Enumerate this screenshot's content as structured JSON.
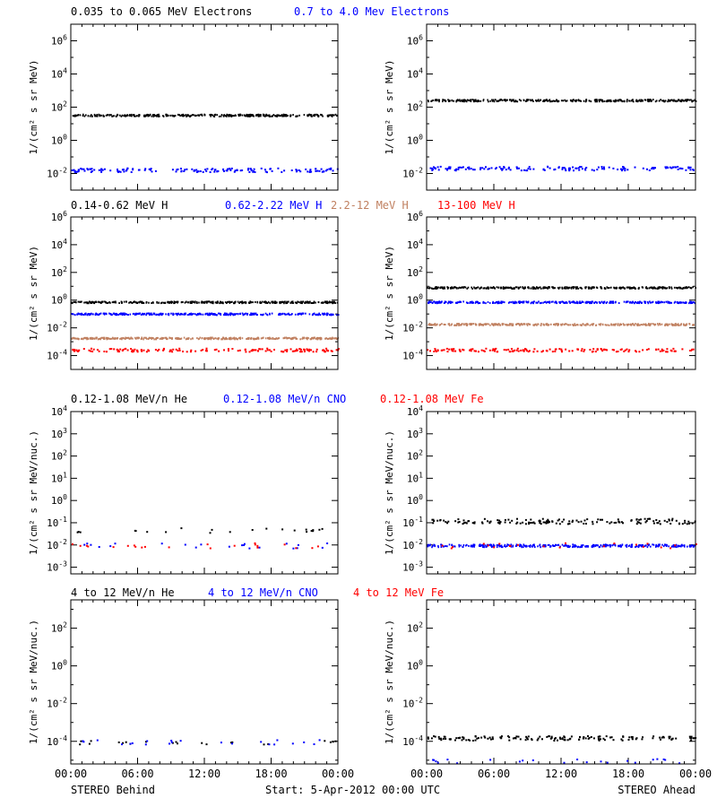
{
  "colors": {
    "black": "#000000",
    "blue": "#0000ff",
    "tan": "#c08060",
    "red": "#ff0000"
  },
  "footer": {
    "behind": "STEREO Behind",
    "ahead": "STEREO Ahead",
    "start": "Start:  5-Apr-2012 00:00 UTC"
  },
  "x_ticks": [
    "00:00",
    "06:00",
    "12:00",
    "18:00",
    "00:00"
  ],
  "chart_data": [
    {
      "type": "scatter",
      "row": 0,
      "spacecraft": "STEREO Behind",
      "ylabel": "1/(cm² s sr MeV)",
      "ylim_log10": [
        -3,
        7
      ],
      "y_ticks_exp": [
        -2,
        0,
        2,
        4,
        6
      ],
      "x": [
        0,
        24
      ],
      "x_unit": "hours",
      "series": [
        {
          "name": "0.035 to 0.065 MeV Electrons",
          "color": "black",
          "level_log10": 1.55,
          "density": "continuous"
        },
        {
          "name": "0.7 to 4.0 Mev Electrons",
          "color": "blue",
          "level_log10": -1.75,
          "density": "scattered"
        }
      ]
    },
    {
      "type": "scatter",
      "row": 0,
      "spacecraft": "STEREO Ahead",
      "ylabel": "1/(cm² s sr MeV)",
      "ylim_log10": [
        -3,
        7
      ],
      "y_ticks_exp": [
        -2,
        0,
        2,
        4,
        6
      ],
      "x": [
        0,
        24
      ],
      "x_unit": "hours",
      "series": [
        {
          "name": "0.035 to 0.065 MeV Electrons",
          "color": "black",
          "level_log10": 2.45,
          "density": "continuous"
        },
        {
          "name": "0.7 to 4.0 Mev Electrons",
          "color": "blue",
          "level_log10": -1.65,
          "density": "scattered"
        }
      ]
    },
    {
      "type": "scatter",
      "row": 1,
      "spacecraft": "STEREO Behind",
      "ylabel": "1/(cm² s sr MeV)",
      "ylim_log10": [
        -5,
        6
      ],
      "y_ticks_exp": [
        -4,
        -2,
        0,
        2,
        4,
        6
      ],
      "x": [
        0,
        24
      ],
      "x_unit": "hours",
      "series": [
        {
          "name": "0.14-0.62 MeV H",
          "color": "black",
          "level_log10": -0.1,
          "density": "continuous"
        },
        {
          "name": "0.62-2.22 MeV H",
          "color": "blue",
          "level_log10": -0.95,
          "density": "continuous"
        },
        {
          "name": "2.2-12 MeV H",
          "color": "tan",
          "level_log10": -2.7,
          "density": "continuous"
        },
        {
          "name": "13-100 MeV H",
          "color": "red",
          "level_log10": -3.55,
          "density": "scattered"
        }
      ]
    },
    {
      "type": "scatter",
      "row": 1,
      "spacecraft": "STEREO Ahead",
      "ylabel": "1/(cm² s sr MeV)",
      "ylim_log10": [
        -5,
        6
      ],
      "y_ticks_exp": [
        -4,
        -2,
        0,
        2,
        4,
        6
      ],
      "x": [
        0,
        24
      ],
      "x_unit": "hours",
      "series": [
        {
          "name": "0.14-0.62 MeV H",
          "color": "black",
          "level_log10": 0.95,
          "density": "continuous"
        },
        {
          "name": "0.62-2.22 MeV H",
          "color": "blue",
          "level_log10": -0.1,
          "density": "continuous"
        },
        {
          "name": "2.2-12 MeV H",
          "color": "tan",
          "level_log10": -1.7,
          "density": "continuous"
        },
        {
          "name": "13-100 MeV H",
          "color": "red",
          "level_log10": -3.55,
          "density": "scattered"
        }
      ]
    },
    {
      "type": "scatter",
      "row": 2,
      "spacecraft": "STEREO Behind",
      "ylabel": "1/(cm² s sr MeV/nuc.)",
      "ylim_log10": [
        -3.3,
        4
      ],
      "y_ticks_exp": [
        -3,
        -2,
        -1,
        0,
        1,
        2,
        3,
        4
      ],
      "x": [
        0,
        24
      ],
      "x_unit": "hours",
      "series": [
        {
          "name": "0.12-1.08 MeV/n He",
          "color": "black",
          "level_log10": -1.3,
          "density": "sparse"
        },
        {
          "name": "0.12-1.08 MeV/n CNO",
          "color": "blue",
          "level_log10": -2.0,
          "density": "sparse"
        },
        {
          "name": "0.12-1.08 MeV Fe",
          "color": "red",
          "level_log10": -2.0,
          "density": "sparse"
        }
      ]
    },
    {
      "type": "scatter",
      "row": 2,
      "spacecraft": "STEREO Ahead",
      "ylabel": "1/(cm² s sr MeV/nuc.)",
      "ylim_log10": [
        -3.3,
        4
      ],
      "y_ticks_exp": [
        -3,
        -2,
        -1,
        0,
        1,
        2,
        3,
        4
      ],
      "x": [
        0,
        24
      ],
      "x_unit": "hours",
      "series": [
        {
          "name": "0.12-1.08 MeV/n He",
          "color": "black",
          "level_log10": -0.9,
          "density": "scattered"
        },
        {
          "name": "0.12-1.08 MeV/n CNO",
          "color": "blue",
          "level_log10": -2.0,
          "density": "continuous"
        },
        {
          "name": "0.12-1.08 MeV Fe",
          "color": "red",
          "level_log10": -2.0,
          "density": "sparse"
        }
      ]
    },
    {
      "type": "scatter",
      "row": 3,
      "spacecraft": "STEREO Behind",
      "ylabel": "1/(cm² s sr MeV/nuc.)",
      "ylim_log10": [
        -5.2,
        3.5
      ],
      "y_ticks_exp": [
        -4,
        -2,
        0,
        2
      ],
      "x": [
        0,
        24
      ],
      "x_unit": "hours",
      "series": [
        {
          "name": "4 to 12 MeV/n He",
          "color": "black",
          "level_log10": -4.0,
          "density": "sparse"
        },
        {
          "name": "4 to 12 MeV/n CNO",
          "color": "blue",
          "level_log10": -4.0,
          "density": "sparse"
        },
        {
          "name": "4 to 12 MeV Fe",
          "color": "red",
          "level_log10": -4.0,
          "density": "none"
        }
      ]
    },
    {
      "type": "scatter",
      "row": 3,
      "spacecraft": "STEREO Ahead",
      "ylabel": "1/(cm² s sr MeV/nuc.)",
      "ylim_log10": [
        -5.2,
        3.5
      ],
      "y_ticks_exp": [
        -4,
        -2,
        0,
        2
      ],
      "x": [
        0,
        24
      ],
      "x_unit": "hours",
      "series": [
        {
          "name": "4 to 12 MeV/n He",
          "color": "black",
          "level_log10": -3.8,
          "density": "scattered"
        },
        {
          "name": "4 to 12 MeV/n CNO",
          "color": "blue",
          "level_log10": -5.0,
          "density": "sparse"
        },
        {
          "name": "4 to 12 MeV Fe",
          "color": "red",
          "level_log10": -4.0,
          "density": "none"
        }
      ]
    }
  ]
}
